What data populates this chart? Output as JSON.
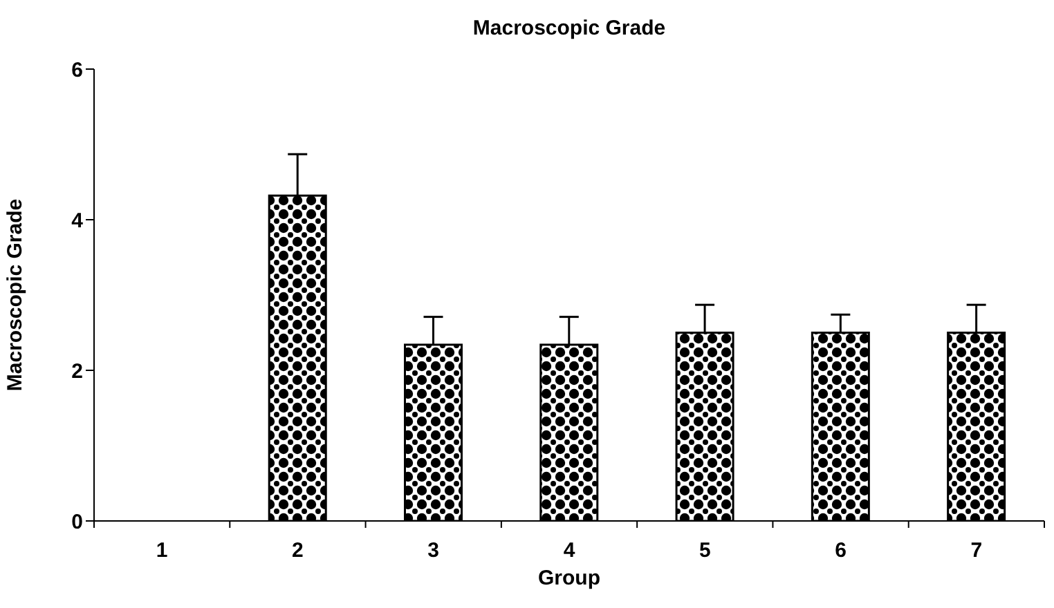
{
  "chart_data": {
    "type": "bar",
    "title": "Macroscopic Grade",
    "xlabel": "Group",
    "ylabel": "Macroscopic Grade",
    "categories": [
      "1",
      "2",
      "3",
      "4",
      "5",
      "6",
      "7"
    ],
    "values": [
      0,
      4.32,
      2.34,
      2.34,
      2.5,
      2.5,
      2.5
    ],
    "errors": [
      null,
      0.55,
      0.37,
      0.37,
      0.37,
      0.24,
      0.37
    ],
    "color": "#000000",
    "ylim": [
      0,
      6
    ],
    "yticks": [
      0,
      2,
      4,
      6
    ],
    "grid": false,
    "legend": false
  }
}
